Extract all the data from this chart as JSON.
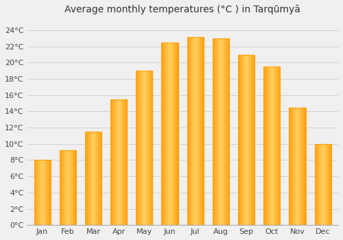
{
  "title": "Average monthly temperatures (°C ) in Tarqūmyā",
  "months": [
    "Jan",
    "Feb",
    "Mar",
    "Apr",
    "May",
    "Jun",
    "Jul",
    "Aug",
    "Sep",
    "Oct",
    "Nov",
    "Dec"
  ],
  "values": [
    8.0,
    9.2,
    11.5,
    15.5,
    19.0,
    22.5,
    23.2,
    23.0,
    21.0,
    19.5,
    14.5,
    10.0
  ],
  "bar_color_light": "#FFD060",
  "bar_color_dark": "#FFA010",
  "background_color": "#f0f0f0",
  "grid_color": "#cccccc",
  "yticks": [
    0,
    2,
    4,
    6,
    8,
    10,
    12,
    14,
    16,
    18,
    20,
    22,
    24
  ],
  "ylim": [
    0,
    25.5
  ],
  "title_fontsize": 10,
  "tick_fontsize": 8,
  "xtick_fontsize": 8
}
